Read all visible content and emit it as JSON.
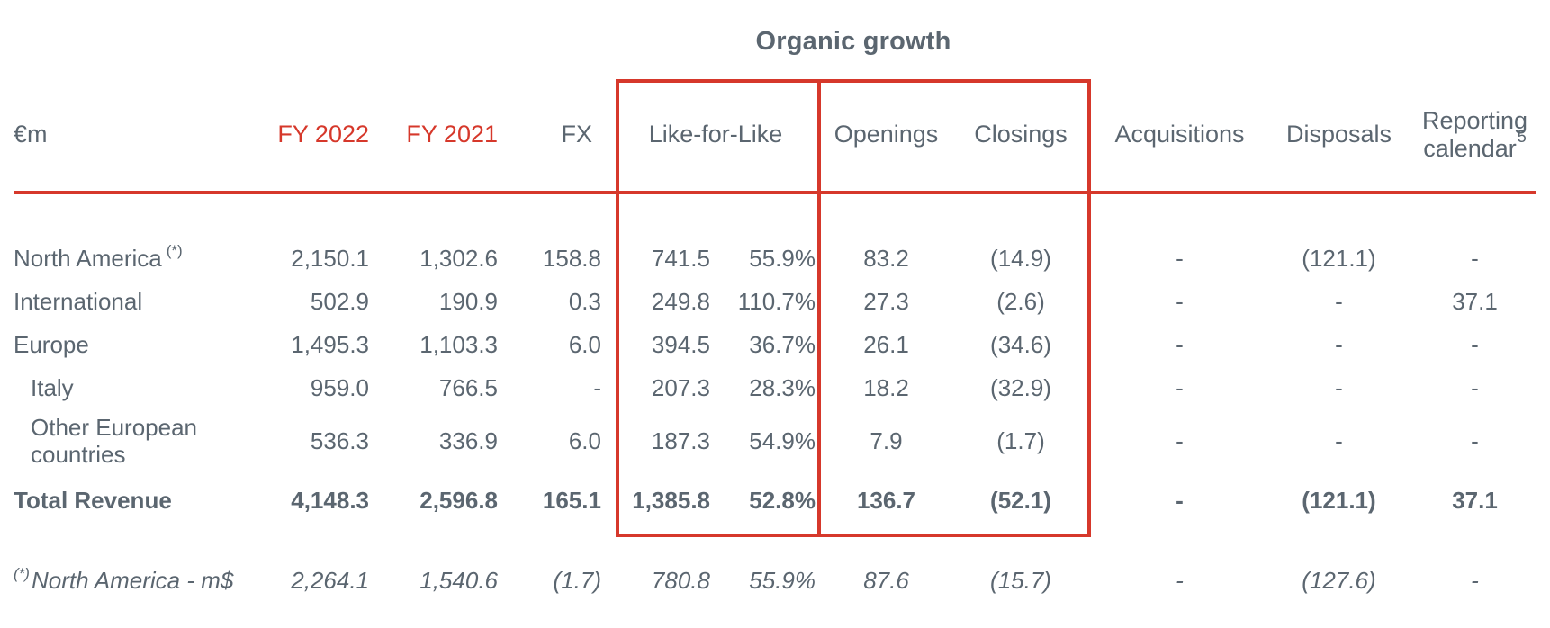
{
  "colors": {
    "accent_red": "#d6382b",
    "text_gray": "#5b6670"
  },
  "title": "Organic growth",
  "unit_label": "€m",
  "columns": {
    "fy2022": "FY 2022",
    "fy2021": "FY 2021",
    "fx": "FX",
    "like_for_like": "Like-for-Like",
    "openings": "Openings",
    "closings": "Closings",
    "acquisitions": "Acquisitions",
    "disposals": "Disposals",
    "reporting_line1": "Reporting",
    "reporting_line2": "calendar",
    "reporting_sup": "5"
  },
  "rows": [
    {
      "label": "North America",
      "sup": "(*)",
      "fy2022": "2,150.1",
      "fy2021": "1,302.6",
      "fx": "158.8",
      "lfl": "741.5",
      "lfl_pct": "55.9%",
      "openings": "83.2",
      "closings": "(14.9)",
      "acquisitions": "-",
      "disposals": "(121.1)",
      "reporting": "-"
    },
    {
      "label": "International",
      "fy2022": "502.9",
      "fy2021": "190.9",
      "fx": "0.3",
      "lfl": "249.8",
      "lfl_pct": "110.7%",
      "openings": "27.3",
      "closings": "(2.6)",
      "acquisitions": "-",
      "disposals": "-",
      "reporting": "37.1"
    },
    {
      "label": "Europe",
      "fy2022": "1,495.3",
      "fy2021": "1,103.3",
      "fx": "6.0",
      "lfl": "394.5",
      "lfl_pct": "36.7%",
      "openings": "26.1",
      "closings": "(34.6)",
      "acquisitions": "-",
      "disposals": "-",
      "reporting": "-"
    },
    {
      "label": "Italy",
      "fy2022": "959.0",
      "fy2021": "766.5",
      "fx": "-",
      "lfl": "207.3",
      "lfl_pct": "28.3%",
      "openings": "18.2",
      "closings": "(32.9)",
      "acquisitions": "-",
      "disposals": "-",
      "reporting": "-"
    },
    {
      "label": "Other European countries",
      "fy2022": "536.3",
      "fy2021": "336.9",
      "fx": "6.0",
      "lfl": "187.3",
      "lfl_pct": "54.9%",
      "openings": "7.9",
      "closings": "(1.7)",
      "acquisitions": "-",
      "disposals": "-",
      "reporting": "-"
    },
    {
      "label": "Total Revenue",
      "fy2022": "4,148.3",
      "fy2021": "2,596.8",
      "fx": "165.1",
      "lfl": "1,385.8",
      "lfl_pct": "52.8%",
      "openings": "136.7",
      "closings": "(52.1)",
      "acquisitions": "-",
      "disposals": "(121.1)",
      "reporting": "37.1"
    }
  ],
  "footnote_row": {
    "sup": "(*)",
    "label": "North America - m$",
    "fy2022": "2,264.1",
    "fy2021": "1,540.6",
    "fx": "(1.7)",
    "lfl": "780.8",
    "lfl_pct": "55.9%",
    "openings": "87.6",
    "closings": "(15.7)",
    "acquisitions": "-",
    "disposals": "(127.6)",
    "reporting": "-"
  }
}
